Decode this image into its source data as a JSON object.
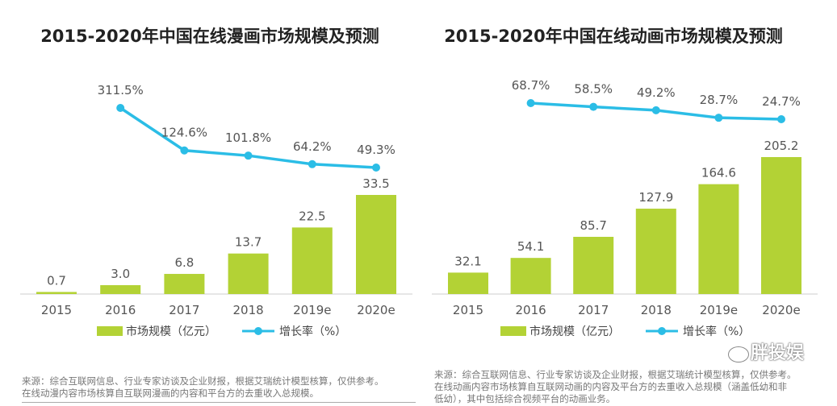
{
  "colors": {
    "bar": "#b3d235",
    "line": "#2bbde6",
    "text": "#555555"
  },
  "chart_data": [
    {
      "type": "bar+line",
      "title": "2015-2020年中国在线漫画市场规模及预测",
      "categories": [
        "2015",
        "2016",
        "2017",
        "2018",
        "2019e",
        "2020e"
      ],
      "series": [
        {
          "name": "市场规模（亿元）",
          "type": "bar",
          "values": [
            0.7,
            3.0,
            6.8,
            13.7,
            22.5,
            33.5
          ],
          "labels": [
            "0.7",
            "3.0",
            "6.8",
            "13.7",
            "22.5",
            "33.5"
          ]
        },
        {
          "name": "增长率（%）",
          "type": "line",
          "values": [
            null,
            311.5,
            124.6,
            101.8,
            64.2,
            49.3
          ],
          "labels": [
            "",
            "311.5%",
            "124.6%",
            "101.8%",
            "64.2%",
            "49.3%"
          ]
        }
      ],
      "legend": "bottom",
      "footnote": [
        "来源：综合互联网信息、行业专家访谈及企业财报，根据艾瑞统计模型核算，仅供参考。",
        "在线动漫内容市场核算自互联网漫画的内容和平台方的去重收入总规模。"
      ]
    },
    {
      "type": "bar+line",
      "title": "2015-2020年中国在线动画市场规模及预测",
      "categories": [
        "2015",
        "2016",
        "2017",
        "2018",
        "2019e",
        "2020e"
      ],
      "series": [
        {
          "name": "市场规模（亿元）",
          "type": "bar",
          "values": [
            32.1,
            54.1,
            85.7,
            127.9,
            164.6,
            205.2
          ],
          "labels": [
            "32.1",
            "54.1",
            "85.7",
            "127.9",
            "164.6",
            "205.2"
          ]
        },
        {
          "name": "增长率（%）",
          "type": "line",
          "values": [
            null,
            68.7,
            58.5,
            49.2,
            28.7,
            24.7
          ],
          "labels": [
            "",
            "68.7%",
            "58.5%",
            "49.2%",
            "28.7%",
            "24.7%"
          ]
        }
      ],
      "legend": "bottom",
      "footnote": [
        "来源：综合互联网信息、行业专家访谈及企业财报，根据艾瑞统计模型核算，仅供参考。",
        "在线动画内容市场核算自互联网动画的内容及平台方的去重收入总规模（涵盖低幼和非",
        "低幼），其中包括综合视频平台的动画业务。"
      ]
    }
  ],
  "watermark": "胖投娱"
}
